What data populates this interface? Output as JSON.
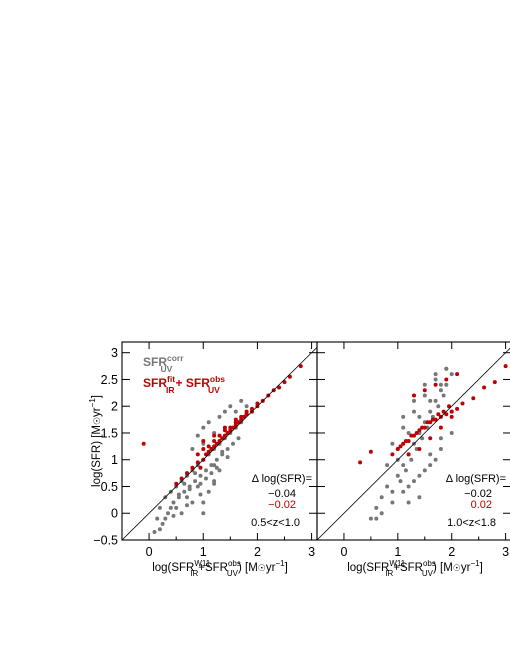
{
  "chart_data": [
    {
      "type": "scatter",
      "xlim": [
        -0.5,
        3.1
      ],
      "ylim": [
        -0.5,
        3.2
      ],
      "xticks": [
        "0",
        "1",
        "2",
        "3"
      ],
      "yticks": [
        "-0.5",
        "0",
        "0.5",
        "1",
        "1.5",
        "2",
        "2.5",
        "3"
      ],
      "ylabel": "log(SFR) [M☉yr⁻¹]",
      "xlabel": "log(SFR_IR^W11+SFR_UV^obs) [M☉yr⁻¹]",
      "one_to_one_line": true,
      "legend": {
        "placement": "top-left",
        "entries": [
          {
            "label": "SFR",
            "sup": "corr",
            "sub": "UV",
            "color": "#777777"
          },
          {
            "label": "SFR",
            "sup": "fit",
            "sub": "IR",
            "extra": "+ SFR",
            "extra_sup": "obs",
            "extra_sub": "UV",
            "color": "#c00000"
          }
        ]
      },
      "delta_label": "Δ log(SFR)=",
      "delta_values": [
        "−0.04",
        "−0.02"
      ],
      "redshift_label": "0.5<z<1.0",
      "series": [
        {
          "name": "SFR_UV^corr",
          "color": "#777777",
          "x": [
            0.1,
            0.15,
            0.2,
            0.25,
            0.3,
            0.35,
            0.4,
            0.45,
            0.5,
            0.55,
            0.6,
            0.65,
            0.7,
            0.75,
            0.8,
            0.85,
            0.9,
            0.95,
            1.0,
            1.05,
            1.1,
            1.15,
            1.2,
            1.25,
            1.3,
            1.35,
            1.4,
            1.45,
            1.5,
            1.55,
            1.6,
            1.65,
            1.7,
            0.3,
            0.5,
            0.7,
            0.9,
            1.0,
            1.1,
            1.2,
            1.3,
            0.6,
            0.8,
            1.0,
            1.2,
            0.4,
            0.65,
            0.85,
            1.05,
            1.25,
            1.45,
            0.55,
            0.75,
            0.95,
            1.15,
            1.35,
            0.2,
            0.45,
            0.7,
            0.95,
            1.2,
            0.9,
            1.0,
            1.1,
            1.3,
            1.4,
            1.6,
            1.5,
            1.7,
            1.8,
            0.8,
            1.0,
            1.2
          ],
          "y": [
            -0.35,
            -0.1,
            0.1,
            -0.2,
            0.3,
            0.0,
            0.4,
            0.2,
            0.5,
            0.3,
            0.6,
            0.4,
            0.7,
            0.5,
            0.8,
            0.6,
            0.9,
            0.7,
            1.0,
            0.8,
            1.1,
            0.9,
            1.2,
            1.0,
            1.3,
            1.1,
            1.4,
            1.2,
            1.5,
            1.3,
            1.6,
            1.4,
            1.7,
            -0.1,
            0.1,
            0.3,
            0.5,
            0.2,
            0.4,
            0.6,
            0.8,
            0.0,
            0.2,
            0.0,
            0.9,
            0.1,
            0.55,
            0.75,
            0.65,
            0.85,
            1.05,
            0.35,
            0.45,
            0.55,
            0.75,
            1.15,
            -0.3,
            -0.05,
            0.15,
            0.35,
            0.55,
            1.45,
            1.6,
            1.7,
            1.8,
            1.9,
            1.9,
            2.0,
            2.1,
            2.0,
            1.2,
            1.3,
            1.5
          ]
        },
        {
          "name": "SFR_IR^fit + SFR_UV^obs",
          "color": "#c00000",
          "x": [
            -0.1,
            0.5,
            0.6,
            0.7,
            0.8,
            0.9,
            1.0,
            1.05,
            1.1,
            1.15,
            1.2,
            1.25,
            1.3,
            1.35,
            1.4,
            1.45,
            1.5,
            1.55,
            1.6,
            1.65,
            1.7,
            1.75,
            1.8,
            1.9,
            2.0,
            2.1,
            2.2,
            2.3,
            2.4,
            2.5,
            0.9,
            1.0,
            1.1,
            1.2,
            1.3,
            1.4,
            1.5,
            1.6,
            1.7,
            1.8,
            1.9,
            2.0,
            1.0,
            1.2,
            1.4,
            1.6,
            1.8,
            2.6,
            2.8,
            0.95
          ],
          "y": [
            1.3,
            0.55,
            0.65,
            0.75,
            0.85,
            0.95,
            1.0,
            1.1,
            1.15,
            1.2,
            1.25,
            1.3,
            1.35,
            1.4,
            1.45,
            1.5,
            1.55,
            1.6,
            1.65,
            1.7,
            1.75,
            1.8,
            1.85,
            1.9,
            2.0,
            2.1,
            2.2,
            2.3,
            2.35,
            2.45,
            1.1,
            1.2,
            1.25,
            1.35,
            1.45,
            1.55,
            1.6,
            1.7,
            1.8,
            1.9,
            1.95,
            2.05,
            1.35,
            1.45,
            1.6,
            1.75,
            1.85,
            2.55,
            2.75,
            0.85
          ]
        }
      ]
    },
    {
      "type": "scatter",
      "xlim": [
        -0.5,
        3.1
      ],
      "ylim": [
        -0.5,
        3.2
      ],
      "xticks": [
        "0",
        "1",
        "2",
        "3"
      ],
      "xlabel": "log(SFR_IR^W11+SFR_UV^obs) [M☉yr⁻¹]",
      "one_to_one_line": true,
      "delta_label": "Δ log(SFR)=",
      "delta_values": [
        "−0.02",
        "0.02"
      ],
      "redshift_label": "1.0<z<1.8",
      "series": [
        {
          "name": "SFR_UV^corr",
          "color": "#777777",
          "x": [
            0.5,
            0.6,
            0.7,
            0.8,
            0.9,
            1.0,
            1.05,
            1.1,
            1.15,
            1.2,
            1.25,
            1.3,
            1.35,
            1.4,
            1.45,
            1.5,
            1.55,
            1.6,
            1.65,
            1.7,
            1.75,
            1.8,
            1.85,
            1.9,
            2.0,
            0.7,
            0.9,
            1.1,
            1.3,
            1.5,
            1.7,
            0.8,
            1.0,
            1.2,
            1.4,
            1.6,
            1.8,
            0.9,
            1.1,
            1.3,
            1.5,
            1.7,
            1.9,
            1.0,
            1.2,
            1.4,
            1.6,
            1.8,
            2.0,
            1.1,
            1.3,
            1.5,
            1.7,
            1.9,
            0.6,
            1.2,
            1.4,
            1.6,
            1.8,
            2.0
          ],
          "y": [
            -0.1,
            0.1,
            0.3,
            0.5,
            0.4,
            0.7,
            0.6,
            0.9,
            0.8,
            1.1,
            1.0,
            1.3,
            1.2,
            1.5,
            1.4,
            1.7,
            1.6,
            1.9,
            1.8,
            2.1,
            2.0,
            2.3,
            2.2,
            2.4,
            2.6,
            0.0,
            0.2,
            0.4,
            0.6,
            0.8,
            1.0,
            0.9,
            1.2,
            1.5,
            1.8,
            2.1,
            2.4,
            1.3,
            1.6,
            1.9,
            2.2,
            2.5,
            2.7,
            1.0,
            0.5,
            0.3,
            0.9,
            1.2,
            1.5,
            1.8,
            2.1,
            2.4,
            2.6,
            2.7,
            -0.1,
            0.2,
            0.7,
            1.1,
            1.4,
            1.9
          ]
        },
        {
          "name": "SFR_IR^fit + SFR_UV^obs",
          "color": "#c00000",
          "x": [
            0.3,
            0.5,
            0.9,
            1.0,
            1.1,
            1.2,
            1.3,
            1.4,
            1.5,
            1.6,
            1.7,
            1.8,
            1.9,
            2.0,
            2.1,
            2.2,
            2.4,
            2.6,
            2.8,
            3.0,
            1.05,
            1.15,
            1.25,
            1.35,
            1.45,
            1.55,
            1.65,
            1.75,
            1.85,
            1.95,
            1.2,
            1.4,
            1.6,
            1.8,
            2.0,
            1.3,
            1.5,
            1.7,
            1.9,
            2.1
          ],
          "y": [
            0.95,
            1.15,
            1.1,
            1.2,
            1.3,
            1.35,
            1.45,
            1.55,
            1.6,
            1.7,
            1.75,
            1.8,
            1.85,
            1.9,
            1.95,
            2.05,
            2.15,
            2.35,
            2.45,
            2.75,
            1.25,
            1.35,
            1.45,
            1.5,
            1.6,
            1.7,
            1.75,
            1.85,
            1.9,
            2.0,
            1.1,
            1.2,
            1.4,
            1.6,
            1.8,
            2.2,
            2.3,
            2.4,
            2.5,
            2.6
          ]
        }
      ]
    }
  ]
}
